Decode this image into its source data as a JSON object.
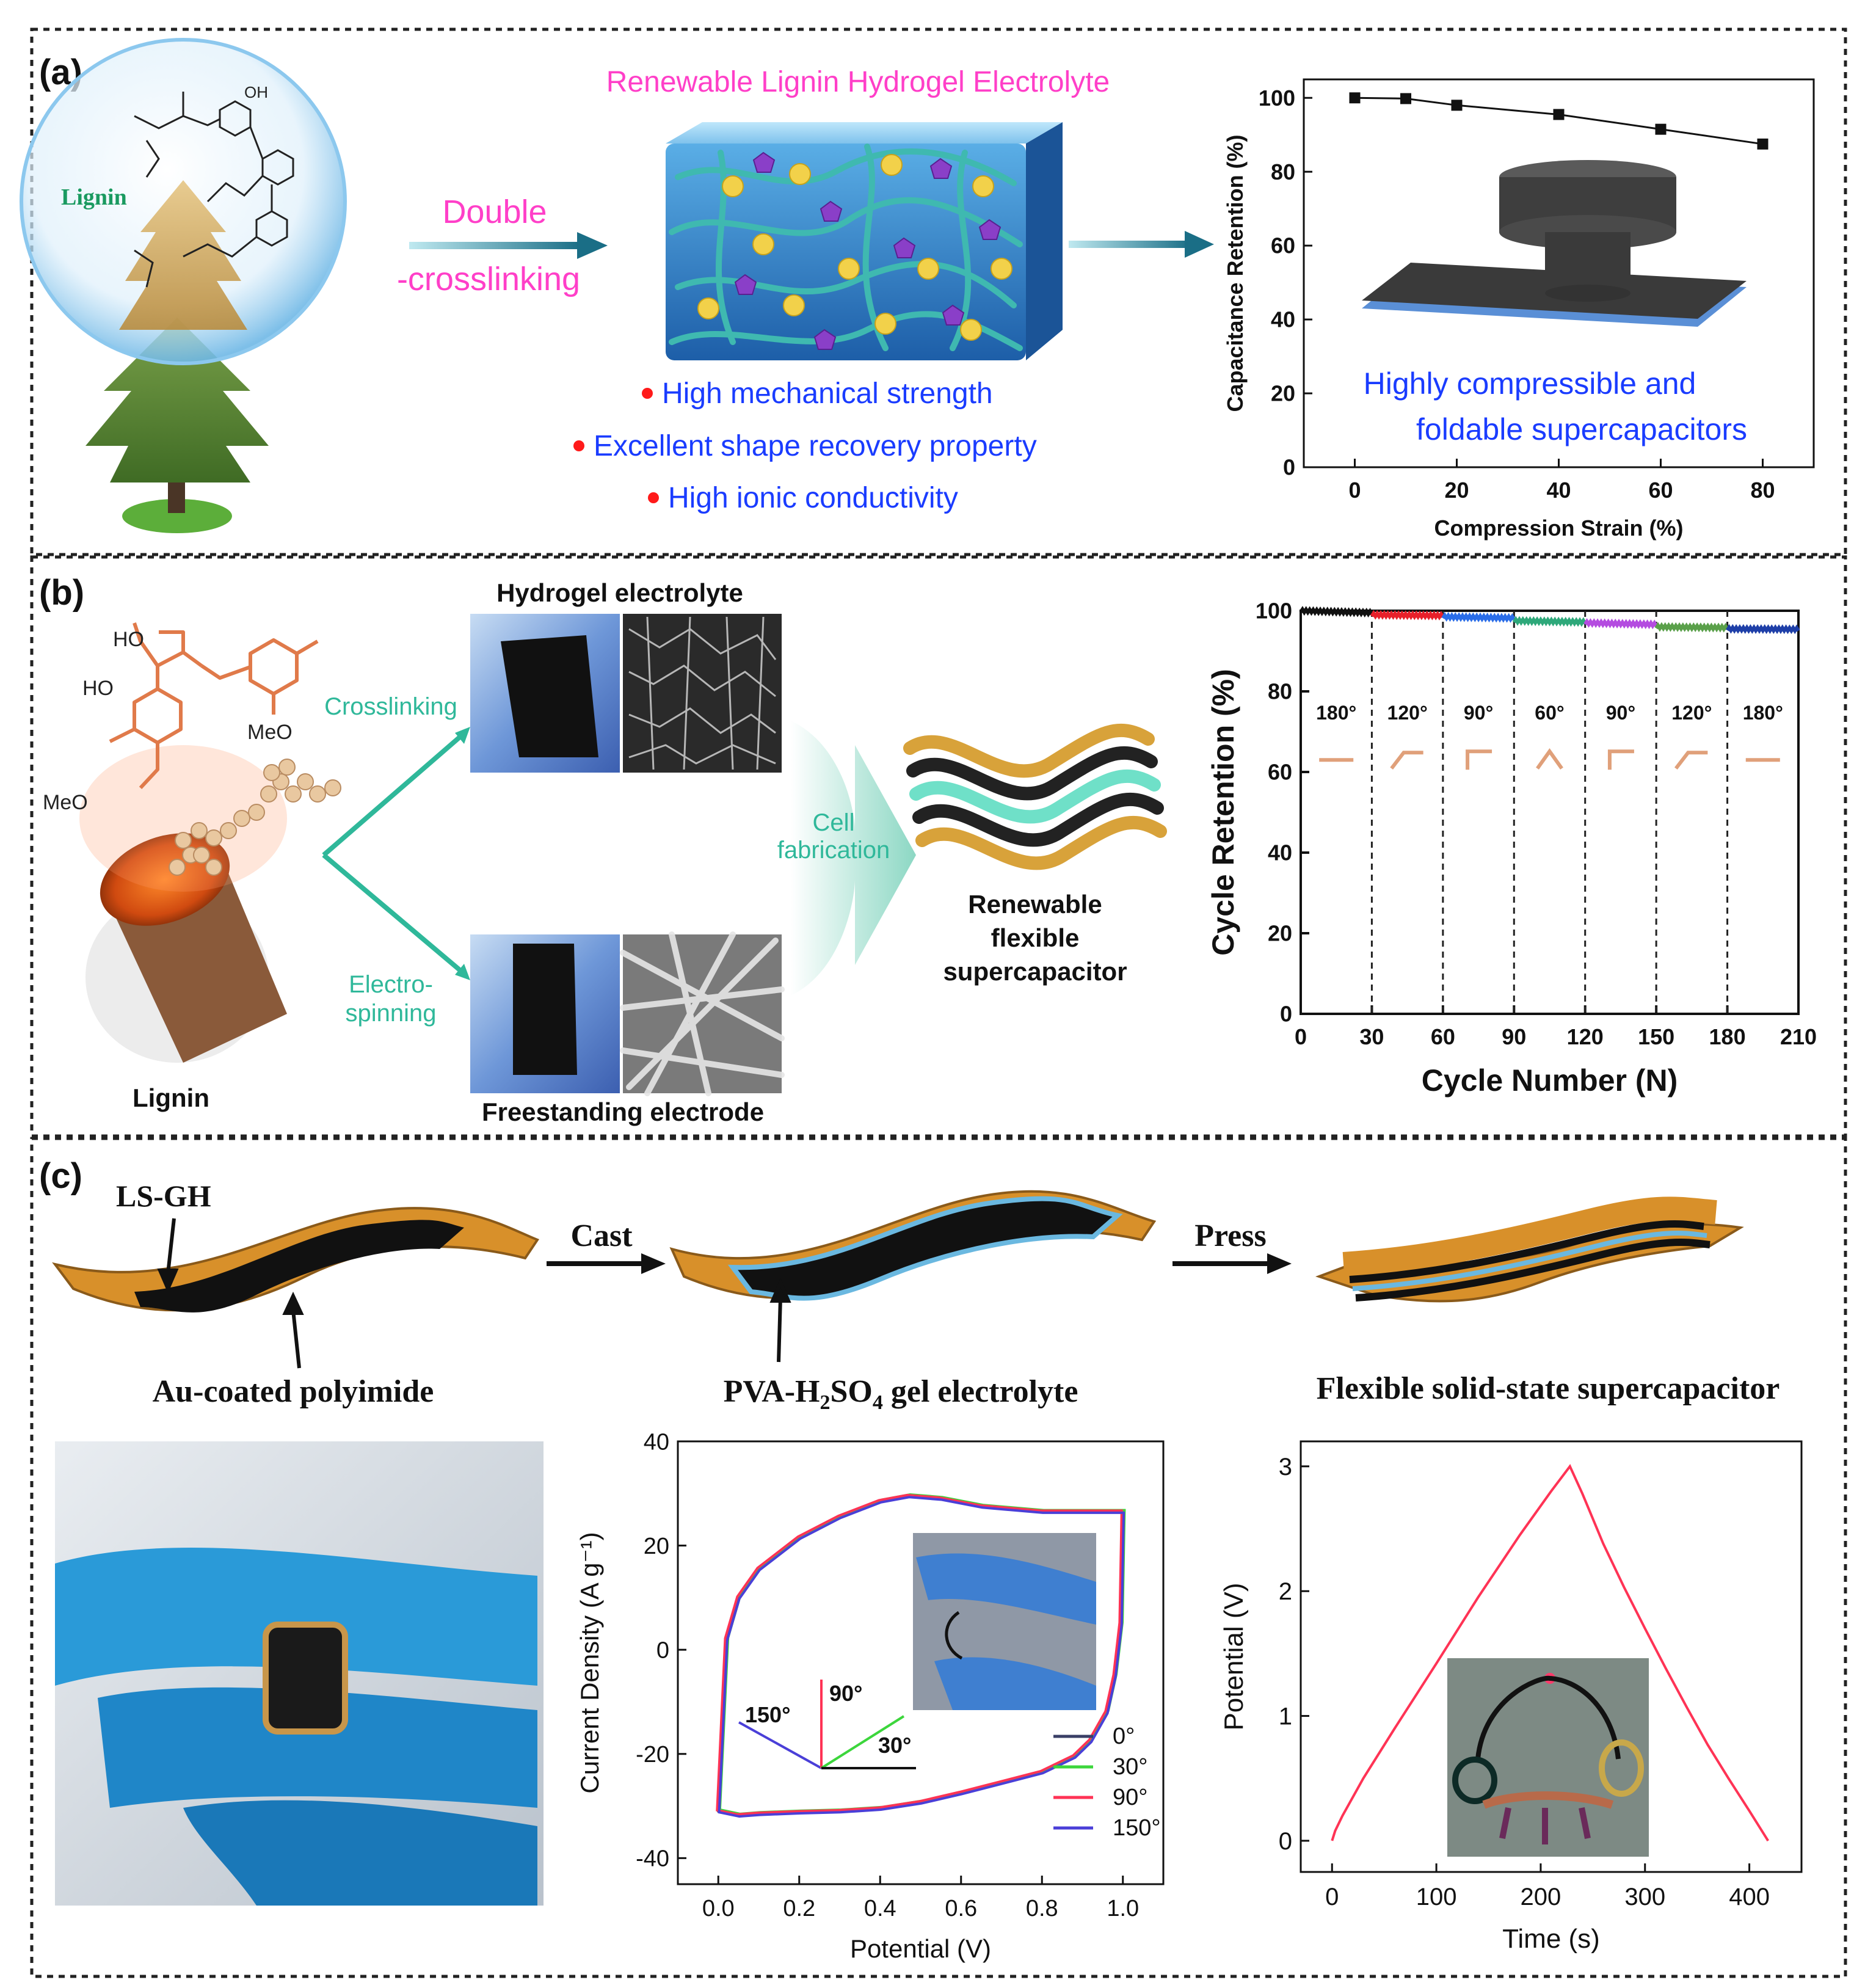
{
  "panel_a": {
    "label": "(a)",
    "lignin_label": "Lignin",
    "oh_label": "OH",
    "title": "Renewable Lignin Hydrogel Electrolyte",
    "arrow_text_line1": "Double",
    "arrow_text_line2": "-crosslinking",
    "bullets": [
      "High mechanical strength",
      "Excellent shape recovery property",
      "High ionic conductivity"
    ],
    "inset_text_line1": "Highly compressible and",
    "inset_text_line2": "foldable supercapacitors",
    "colors": {
      "title": "#ff3fc8",
      "bullet_text": "#1a3cff",
      "bullet_dot": "#ff1a1a",
      "arrow_text": "#ff3fc8",
      "lignin": "#1a9a60"
    }
  },
  "panel_b": {
    "label": "(b)",
    "lignin_label": "Lignin",
    "ho1": "HO",
    "ho2": "HO",
    "meo1": "MeO",
    "meo2": "MeO",
    "branch_top": "Crosslinking",
    "branch_bottom_line1": "Electro-",
    "branch_bottom_line2": "spinning",
    "hydrogel_label": "Hydrogel electrolyte",
    "electrode_label": "Freestanding electrode",
    "cell_line1": "Cell",
    "cell_line2": "fabrication",
    "device_line1": "Renewable",
    "device_line2": "flexible",
    "device_line3": "supercapacitor",
    "colors": {
      "teal": "#2fb89a"
    }
  },
  "panel_c": {
    "label": "(c)",
    "ls_gh": "LS-GH",
    "cast": "Cast",
    "press": "Press",
    "au_label": "Au-coated polyimide",
    "pva_prefix": "PVA-H",
    "pva_sub1": "2",
    "pva_mid": "SO",
    "pva_sub2": "4",
    "pva_suffix": " gel electrolyte",
    "flex_label": "Flexible solid-state supercapacitor",
    "angle_150": "150°",
    "angle_90": "90°",
    "angle_30": "30°"
  },
  "chart_data": [
    {
      "id": "a-capacitance-retention",
      "type": "line",
      "xlabel": "Compression Strain (%)",
      "ylabel": "Capacitance Retention (%)",
      "xlim": [
        -10,
        90
      ],
      "ylim": [
        0,
        105
      ],
      "xticks": [
        0,
        20,
        40,
        60,
        80
      ],
      "yticks": [
        0,
        20,
        40,
        60,
        80,
        100
      ],
      "x": [
        0,
        10,
        20,
        40,
        60,
        80
      ],
      "y": [
        100,
        99.8,
        98,
        95.5,
        91.5,
        87.5
      ]
    },
    {
      "id": "b-cycle-retention",
      "type": "line",
      "xlabel": "Cycle Number (N)",
      "ylabel": "Cycle Retention (%)",
      "xlim": [
        0,
        210
      ],
      "ylim": [
        0,
        100
      ],
      "xticks": [
        0,
        30,
        60,
        90,
        120,
        150,
        180,
        210
      ],
      "yticks": [
        0,
        20,
        40,
        60,
        80,
        100
      ],
      "segments": [
        {
          "x": [
            0,
            30
          ],
          "y": [
            100,
            99.5
          ],
          "color": "#111111",
          "angle": "180°"
        },
        {
          "x": [
            30,
            60
          ],
          "y": [
            99,
            98.8
          ],
          "color": "#e8202a",
          "angle": "120°"
        },
        {
          "x": [
            60,
            90
          ],
          "y": [
            98.5,
            98.2
          ],
          "color": "#2a6de8",
          "angle": "90°"
        },
        {
          "x": [
            90,
            120
          ],
          "y": [
            97.5,
            97.2
          ],
          "color": "#2ea87a",
          "angle": "60°"
        },
        {
          "x": [
            120,
            150
          ],
          "y": [
            97,
            96.6
          ],
          "color": "#b44ce0",
          "angle": "90°"
        },
        {
          "x": [
            150,
            180
          ],
          "y": [
            96,
            95.8
          ],
          "color": "#5aa04a",
          "angle": "120°"
        },
        {
          "x": [
            180,
            210
          ],
          "y": [
            95.5,
            95.4
          ],
          "color": "#1e3fa8",
          "angle": "180°"
        }
      ]
    },
    {
      "id": "c-cv-curves",
      "type": "line",
      "xlabel": "Potential (V)",
      "ylabel": "Current Density (A g⁻¹)",
      "xlim": [
        -0.1,
        1.1
      ],
      "ylim": [
        -45,
        40
      ],
      "xticks": [
        0.0,
        0.2,
        0.4,
        0.6,
        0.8,
        1.0
      ],
      "xticklabels": [
        "0.0",
        "0.2",
        "0.4",
        "0.6",
        "0.8",
        "1.0"
      ],
      "yticks": [
        -40,
        -20,
        0,
        20,
        40
      ],
      "upper": {
        "x": [
          0.0,
          0.02,
          0.05,
          0.1,
          0.2,
          0.3,
          0.4,
          0.47,
          0.55,
          0.65,
          0.8,
          0.9,
          0.98,
          1.0
        ],
        "y": [
          -31,
          2,
          10,
          15.5,
          21.5,
          25.5,
          28.5,
          29.5,
          29,
          27.5,
          26.5,
          26.5,
          26.5,
          26.5
        ]
      },
      "lower": {
        "x": [
          1.0,
          0.995,
          0.98,
          0.96,
          0.92,
          0.88,
          0.8,
          0.7,
          0.6,
          0.5,
          0.4,
          0.3,
          0.2,
          0.1,
          0.05,
          0.0
        ],
        "y": [
          26.5,
          5,
          -5,
          -12,
          -17.5,
          -20.5,
          -23.5,
          -25.5,
          -27.5,
          -29.3,
          -30.5,
          -31,
          -31.2,
          -31.5,
          -31.8,
          -31
        ]
      },
      "series": [
        {
          "name": "0°",
          "color": "#3a3f66"
        },
        {
          "name": "30°",
          "color": "#3cd63c"
        },
        {
          "name": "90°",
          "color": "#ff3355"
        },
        {
          "name": "150°",
          "color": "#4a3fd8"
        }
      ]
    },
    {
      "id": "c-charge-discharge",
      "type": "line",
      "xlabel": "Time (s)",
      "ylabel": "Potential (V)",
      "xlim": [
        -30,
        450
      ],
      "ylim": [
        -0.25,
        3.2
      ],
      "xticks": [
        0,
        100,
        200,
        300,
        400
      ],
      "yticks": [
        0,
        1,
        2,
        3
      ],
      "x": [
        0,
        3,
        10,
        30,
        60,
        100,
        140,
        180,
        210,
        228,
        240,
        260,
        280,
        300,
        320,
        340,
        360,
        380,
        400,
        418
      ],
      "y": [
        0.0,
        0.08,
        0.2,
        0.5,
        0.9,
        1.42,
        1.95,
        2.45,
        2.8,
        3.0,
        2.78,
        2.38,
        2.03,
        1.7,
        1.38,
        1.07,
        0.77,
        0.5,
        0.24,
        0.0
      ],
      "color": "#ff3355"
    }
  ]
}
